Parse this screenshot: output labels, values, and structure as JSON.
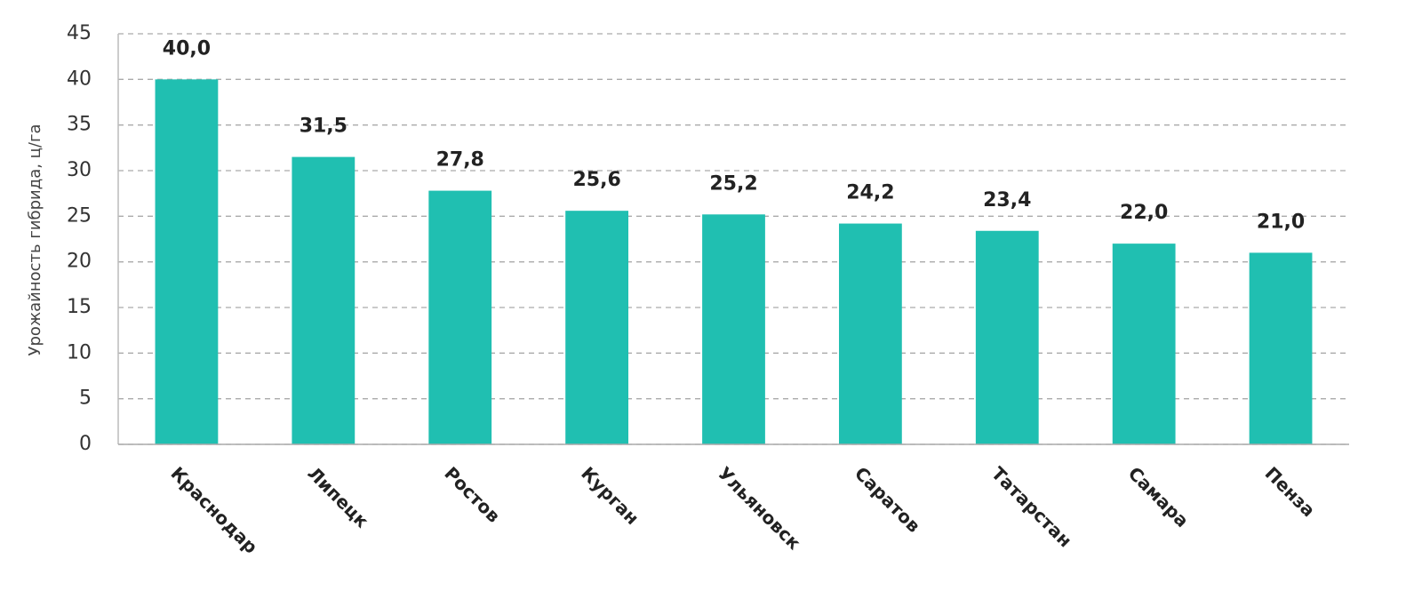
{
  "chart_data": {
    "type": "bar",
    "y_label": "Урожайность гибрида, ц/га",
    "categories": [
      "Краснодар",
      "Липецк",
      "Ростов",
      "Курган",
      "Ульяновск",
      "Саратов",
      "Татарстан",
      "Самара",
      "Пенза"
    ],
    "values": [
      40.0,
      31.5,
      27.8,
      25.6,
      25.2,
      24.2,
      23.4,
      22.0,
      21.0
    ],
    "value_labels": [
      "40,0",
      "31,5",
      "27,8",
      "25,6",
      "25,2",
      "24,2",
      "23,4",
      "22,0",
      "21,0"
    ],
    "color": "#20bfb1",
    "ylim": [
      0,
      45
    ],
    "yticks": [
      0,
      5,
      10,
      15,
      20,
      25,
      30,
      35,
      40,
      45
    ],
    "grid": true
  }
}
